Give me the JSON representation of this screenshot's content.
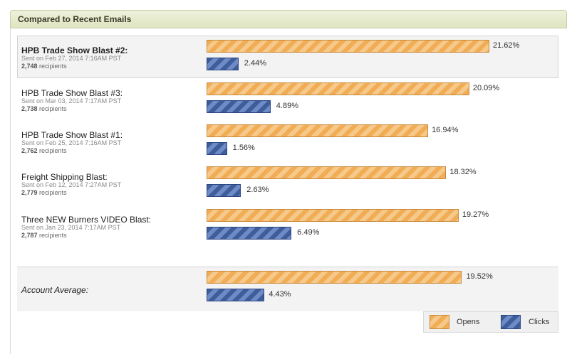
{
  "header": {
    "title": "Compared to Recent Emails"
  },
  "chart_data": {
    "type": "bar",
    "orientation": "horizontal",
    "series_names": [
      "Opens",
      "Clicks"
    ],
    "rows": [
      {
        "name": "HPB Trade Show Blast #2:",
        "sent": "Sent on Feb 27, 2014 7:16AM PST",
        "recipients": "2,748",
        "recipients_label": "recipients",
        "opens": 21.62,
        "clicks": 2.44,
        "opens_label": "21.62%",
        "clicks_label": "2.44%",
        "current": true
      },
      {
        "name": "HPB Trade Show Blast #3:",
        "sent": "Sent on Mar 03, 2014 7:17AM PST",
        "recipients": "2,738",
        "recipients_label": "recipients",
        "opens": 20.09,
        "clicks": 4.89,
        "opens_label": "20.09%",
        "clicks_label": "4.89%",
        "current": false
      },
      {
        "name": "HPB Trade Show Blast #1:",
        "sent": "Sent on Feb 25, 2014 7:16AM PST",
        "recipients": "2,762",
        "recipients_label": "recipients",
        "opens": 16.94,
        "clicks": 1.56,
        "opens_label": "16.94%",
        "clicks_label": "1.56%",
        "current": false
      },
      {
        "name": "Freight Shipping Blast:",
        "sent": "Sent on Feb 12, 2014 7:27AM PST",
        "recipients": "2,779",
        "recipients_label": "recipients",
        "opens": 18.32,
        "clicks": 2.63,
        "opens_label": "18.32%",
        "clicks_label": "2.63%",
        "current": false
      },
      {
        "name": "Three NEW Burners VIDEO Blast:",
        "sent": "Sent on Jan 23, 2014 7:17AM PST",
        "recipients": "2,787",
        "recipients_label": "recipients",
        "opens": 19.27,
        "clicks": 6.49,
        "opens_label": "19.27%",
        "clicks_label": "6.49%",
        "current": false
      }
    ],
    "average": {
      "name": "Account Average:",
      "opens": 19.52,
      "clicks": 4.43,
      "opens_label": "19.52%",
      "clicks_label": "4.43%"
    },
    "xlim": [
      0,
      21.62
    ],
    "legend": [
      {
        "label": "Opens",
        "color": "#f0ad55"
      },
      {
        "label": "Clicks",
        "color": "#3e5d9b"
      }
    ],
    "legend_position": "bottom-right"
  }
}
